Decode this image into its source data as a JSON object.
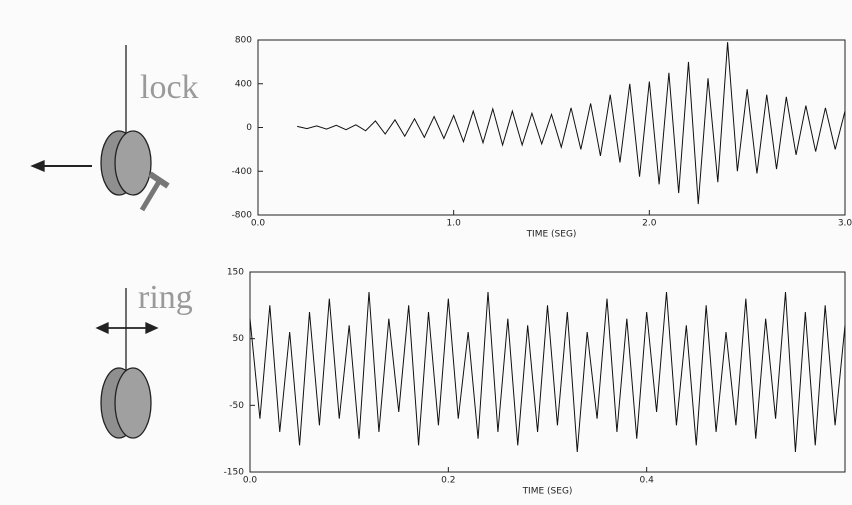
{
  "chart_data": [
    {
      "type": "line",
      "annotation": "lock",
      "xlabel": "TIME (SEG)",
      "xlim": [
        0,
        3
      ],
      "ylim": [
        -800,
        800
      ],
      "xticks": [
        {
          "value": 0,
          "label": "0.0"
        },
        {
          "value": 1,
          "label": "1.0"
        },
        {
          "value": 2,
          "label": "2.0"
        },
        {
          "value": 3,
          "label": "3.0"
        }
      ],
      "yticks": [
        -800,
        -400,
        0,
        400,
        800
      ],
      "x": [
        0.2,
        0.25,
        0.3,
        0.35,
        0.4,
        0.45,
        0.5,
        0.55,
        0.6,
        0.65,
        0.7,
        0.75,
        0.8,
        0.85,
        0.9,
        0.95,
        1.0,
        1.05,
        1.1,
        1.15,
        1.2,
        1.25,
        1.3,
        1.35,
        1.4,
        1.45,
        1.5,
        1.55,
        1.6,
        1.65,
        1.7,
        1.75,
        1.8,
        1.85,
        1.9,
        1.95,
        2.0,
        2.05,
        2.1,
        2.15,
        2.2,
        2.25,
        2.3,
        2.35,
        2.4,
        2.45,
        2.5,
        2.55,
        2.6,
        2.65,
        2.7,
        2.75,
        2.8,
        2.85,
        2.9,
        2.95,
        3.0
      ],
      "color": "#111111",
      "values": [
        10,
        -10,
        15,
        -15,
        20,
        -20,
        25,
        -30,
        60,
        -60,
        70,
        -80,
        80,
        -90,
        100,
        -100,
        110,
        -130,
        150,
        -140,
        170,
        -160,
        150,
        -160,
        130,
        -150,
        120,
        -180,
        180,
        -200,
        220,
        -260,
        300,
        -320,
        400,
        -450,
        420,
        -520,
        500,
        -600,
        600,
        -700,
        450,
        -500,
        780,
        -400,
        350,
        -420,
        300,
        -380,
        280,
        -250,
        200,
        -220,
        180,
        -200,
        150
      ]
    },
    {
      "type": "line",
      "annotation": "ring",
      "xlabel": "TIME (SEG)",
      "xlim": [
        0,
        0.6
      ],
      "ylim": [
        -150,
        150
      ],
      "xticks": [
        {
          "value": 0,
          "label": "0.0"
        },
        0.2,
        0.4
      ],
      "yticks": [
        -150,
        -50,
        50,
        150
      ],
      "x": [
        0,
        0.01,
        0.02,
        0.03,
        0.04,
        0.05,
        0.06,
        0.07,
        0.08,
        0.09,
        0.1,
        0.11,
        0.12,
        0.13,
        0.14,
        0.15,
        0.16,
        0.17,
        0.18,
        0.19,
        0.2,
        0.21,
        0.22,
        0.23,
        0.24,
        0.25,
        0.26,
        0.27,
        0.28,
        0.29,
        0.3,
        0.31,
        0.32,
        0.33,
        0.34,
        0.35,
        0.36,
        0.37,
        0.38,
        0.39,
        0.4,
        0.41,
        0.42,
        0.43,
        0.44,
        0.45,
        0.46,
        0.47,
        0.48,
        0.49,
        0.5,
        0.51,
        0.52,
        0.53,
        0.54,
        0.55,
        0.56,
        0.57,
        0.58,
        0.59,
        0.6
      ],
      "color": "#111111",
      "values": [
        80,
        -70,
        100,
        -90,
        60,
        -110,
        90,
        -80,
        110,
        -70,
        70,
        -100,
        120,
        -90,
        80,
        -60,
        100,
        -110,
        90,
        -80,
        110,
        -70,
        60,
        -100,
        120,
        -90,
        80,
        -110,
        70,
        -90,
        100,
        -80,
        90,
        -120,
        60,
        -70,
        110,
        -90,
        80,
        -100,
        90,
        -60,
        120,
        -80,
        70,
        -110,
        100,
        -90,
        60,
        -80,
        110,
        -100,
        80,
        -70,
        120,
        -120,
        90,
        -110,
        100,
        -80,
        70
      ]
    }
  ]
}
